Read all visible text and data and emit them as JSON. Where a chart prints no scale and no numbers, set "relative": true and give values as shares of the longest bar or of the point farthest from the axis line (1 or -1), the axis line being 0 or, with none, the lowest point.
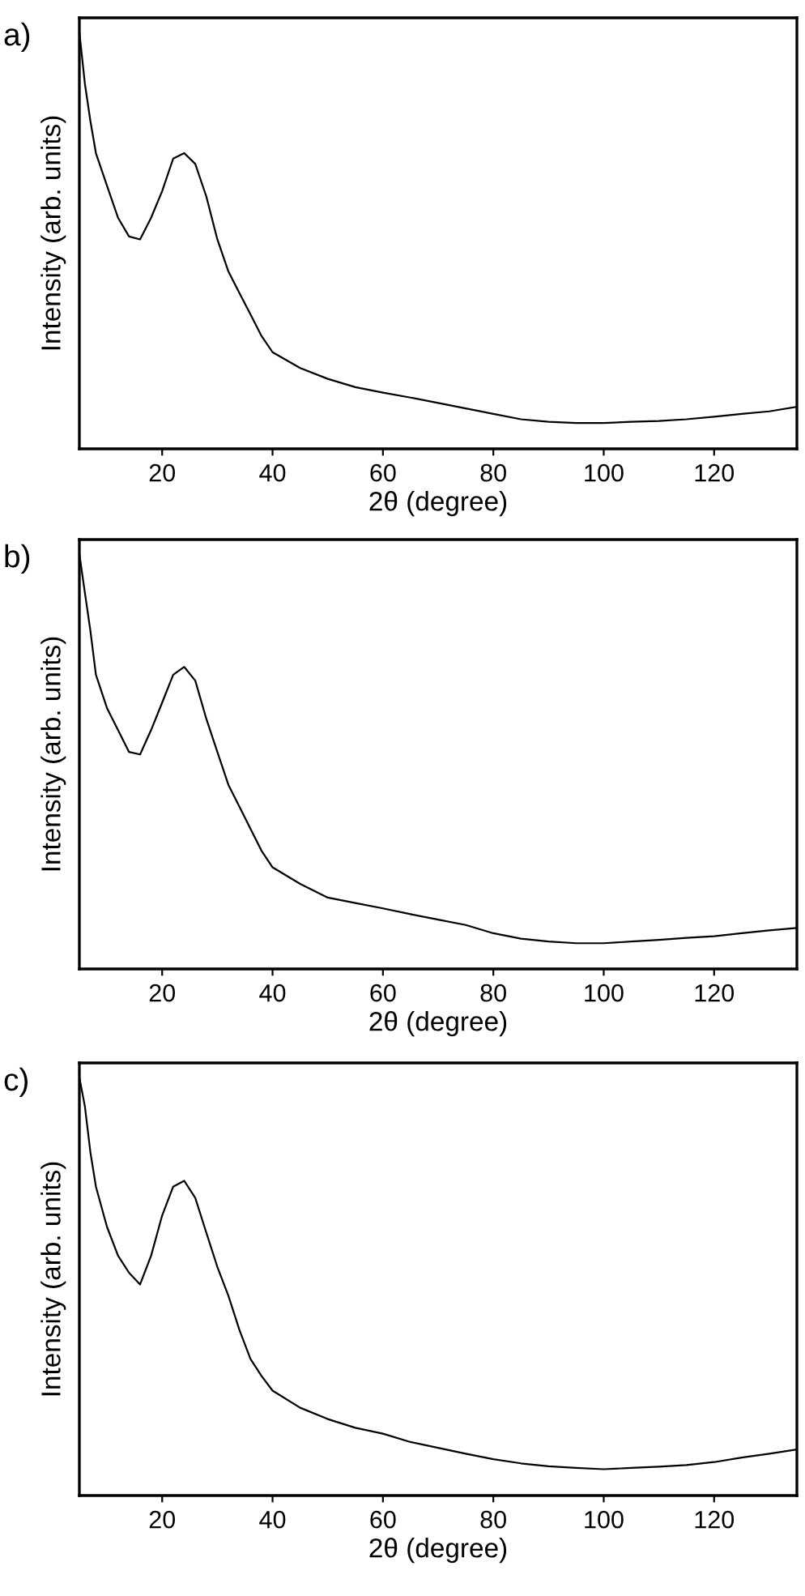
{
  "chart_data": [
    {
      "type": "line",
      "title": "a)",
      "xlabel": "2θ (degree)",
      "ylabel": "Intensity (arb. units)",
      "relative": true,
      "tick_labels": "x",
      "xlim": [
        5,
        135
      ],
      "xticks": [
        20,
        40,
        60,
        80,
        100,
        120
      ],
      "x": [
        5,
        6,
        7,
        8,
        10,
        12,
        14,
        16,
        18,
        20,
        22,
        24,
        26,
        28,
        30,
        32,
        34,
        36,
        38,
        40,
        45,
        50,
        55,
        60,
        65,
        70,
        75,
        80,
        85,
        90,
        95,
        100,
        105,
        110,
        115,
        120,
        125,
        130,
        135
      ],
      "series": [
        {
          "color": "#000000",
          "values": [
            1.0,
            0.877,
            0.787,
            0.71,
            0.632,
            0.555,
            0.51,
            0.503,
            0.555,
            0.619,
            0.697,
            0.71,
            0.684,
            0.606,
            0.503,
            0.426,
            0.374,
            0.323,
            0.271,
            0.232,
            0.194,
            0.168,
            0.148,
            0.135,
            0.123,
            0.11,
            0.097,
            0.084,
            0.071,
            0.065,
            0.062,
            0.062,
            0.065,
            0.067,
            0.071,
            0.077,
            0.084,
            0.09,
            0.101
          ]
        }
      ]
    },
    {
      "type": "line",
      "title": "b)",
      "xlabel": "2θ (degree)",
      "ylabel": "Intensity (arb. units)",
      "relative": true,
      "tick_labels": "x",
      "xlim": [
        5,
        135
      ],
      "xticks": [
        20,
        40,
        60,
        80,
        100,
        120
      ],
      "x": [
        5,
        6,
        7,
        8,
        10,
        12,
        14,
        16,
        18,
        20,
        22,
        24,
        26,
        28,
        30,
        32,
        34,
        36,
        38,
        40,
        45,
        50,
        55,
        60,
        65,
        70,
        75,
        80,
        85,
        90,
        95,
        100,
        105,
        110,
        115,
        120,
        125,
        130,
        135
      ],
      "series": [
        {
          "color": "#000000",
          "values": [
            1.0,
            0.907,
            0.815,
            0.709,
            0.629,
            0.576,
            0.523,
            0.517,
            0.576,
            0.642,
            0.709,
            0.728,
            0.695,
            0.603,
            0.523,
            0.444,
            0.391,
            0.338,
            0.285,
            0.245,
            0.205,
            0.172,
            0.159,
            0.146,
            0.132,
            0.119,
            0.106,
            0.086,
            0.073,
            0.066,
            0.062,
            0.062,
            0.066,
            0.07,
            0.075,
            0.079,
            0.086,
            0.093,
            0.099
          ]
        }
      ]
    },
    {
      "type": "line",
      "title": "c)",
      "xlabel": "2θ (degree)",
      "ylabel": "Intensity (arb. units)",
      "relative": true,
      "tick_labels": "x",
      "xlim": [
        5,
        135
      ],
      "xticks": [
        20,
        40,
        60,
        80,
        100,
        120
      ],
      "x": [
        5,
        6,
        7,
        8,
        10,
        12,
        14,
        16,
        18,
        20,
        22,
        24,
        26,
        28,
        30,
        32,
        34,
        36,
        38,
        40,
        45,
        50,
        55,
        60,
        65,
        70,
        75,
        80,
        85,
        90,
        95,
        100,
        105,
        110,
        115,
        120,
        125,
        130,
        135
      ],
      "series": [
        {
          "color": "#000000",
          "values": [
            1.0,
            0.931,
            0.821,
            0.739,
            0.643,
            0.574,
            0.533,
            0.505,
            0.574,
            0.67,
            0.739,
            0.753,
            0.712,
            0.629,
            0.547,
            0.478,
            0.396,
            0.327,
            0.286,
            0.251,
            0.21,
            0.183,
            0.162,
            0.148,
            0.128,
            0.114,
            0.1,
            0.087,
            0.077,
            0.07,
            0.066,
            0.063,
            0.066,
            0.069,
            0.073,
            0.08,
            0.091,
            0.1,
            0.11
          ]
        }
      ]
    }
  ]
}
